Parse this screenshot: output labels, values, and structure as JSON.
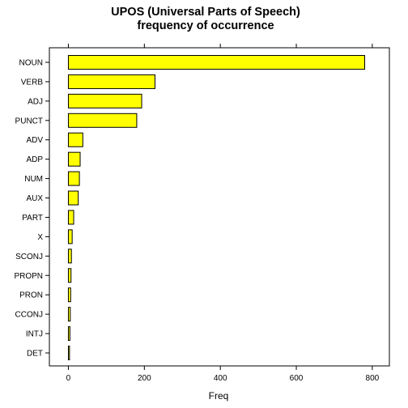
{
  "chart_data": {
    "type": "bar",
    "orientation": "horizontal",
    "title": [
      "UPOS (Universal Parts of Speech)",
      "frequency of occurrence"
    ],
    "xlabel": "Freq",
    "ylabel": "",
    "categories": [
      "NOUN",
      "VERB",
      "ADJ",
      "PUNCT",
      "ADV",
      "ADP",
      "NUM",
      "AUX",
      "PART",
      "X",
      "SCONJ",
      "PROPN",
      "PRON",
      "CCONJ",
      "INTJ",
      "DET"
    ],
    "values": [
      780,
      228,
      193,
      180,
      38,
      31,
      29,
      26,
      14,
      10,
      8,
      7,
      6,
      5,
      4,
      3
    ],
    "xticks": [
      0,
      200,
      400,
      600,
      800
    ],
    "xlim": [
      -50,
      845
    ],
    "bar_color": "#ffff00",
    "bar_stroke": "#000000",
    "grid": false
  }
}
